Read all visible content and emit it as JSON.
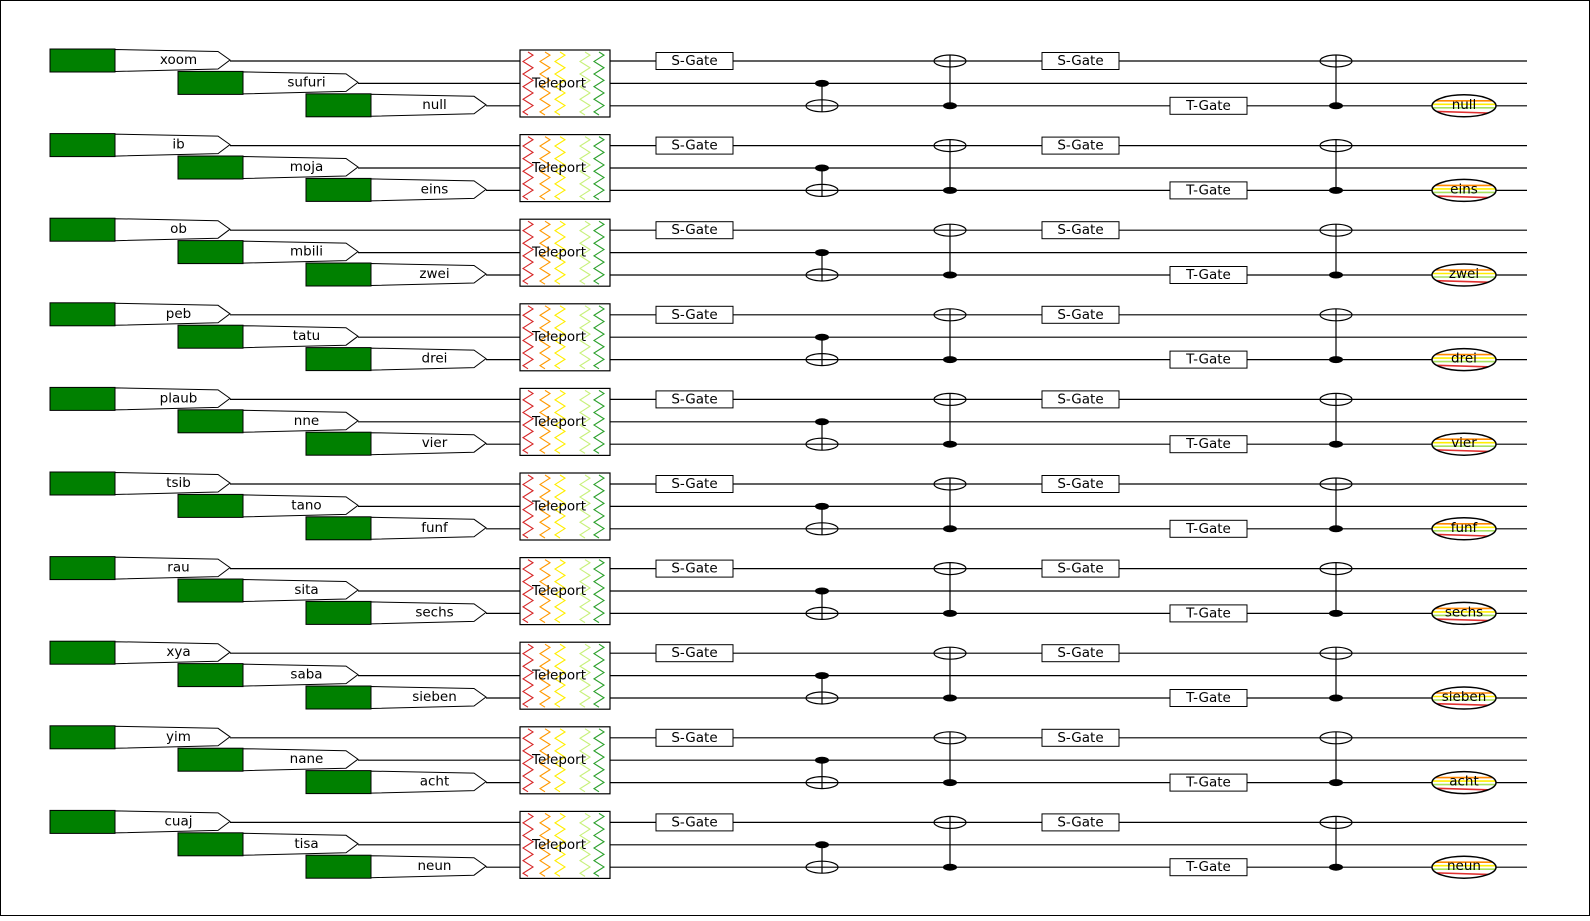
{
  "diagram": {
    "type": "quantum-circuit",
    "gate_labels": {
      "teleport": "Teleport",
      "s_gate": "S-Gate",
      "t_gate": "T-Gate"
    },
    "input_fill_color": "#008000",
    "teleport_wave_colors": [
      "#d62728",
      "#ff9900",
      "#ffee00",
      "#c8f07a",
      "#2ca02c"
    ],
    "measure_colors": [
      "#ff8800",
      "#ffee00",
      "#a8e060",
      "#e03030"
    ],
    "groups": [
      {
        "qubits": [
          "xoom",
          "sufuri",
          "null"
        ]
      },
      {
        "qubits": [
          "ib",
          "moja",
          "eins"
        ]
      },
      {
        "qubits": [
          "ob",
          "mbili",
          "zwei"
        ]
      },
      {
        "qubits": [
          "peb",
          "tatu",
          "drei"
        ]
      },
      {
        "qubits": [
          "plaub",
          "nne",
          "vier"
        ]
      },
      {
        "qubits": [
          "tsib",
          "tano",
          "funf"
        ]
      },
      {
        "qubits": [
          "rau",
          "sita",
          "sechs"
        ]
      },
      {
        "qubits": [
          "xya",
          "saba",
          "sieben"
        ]
      },
      {
        "qubits": [
          "yim",
          "nane",
          "acht"
        ]
      },
      {
        "qubits": [
          "cuaj",
          "tisa",
          "neun"
        ]
      }
    ]
  }
}
